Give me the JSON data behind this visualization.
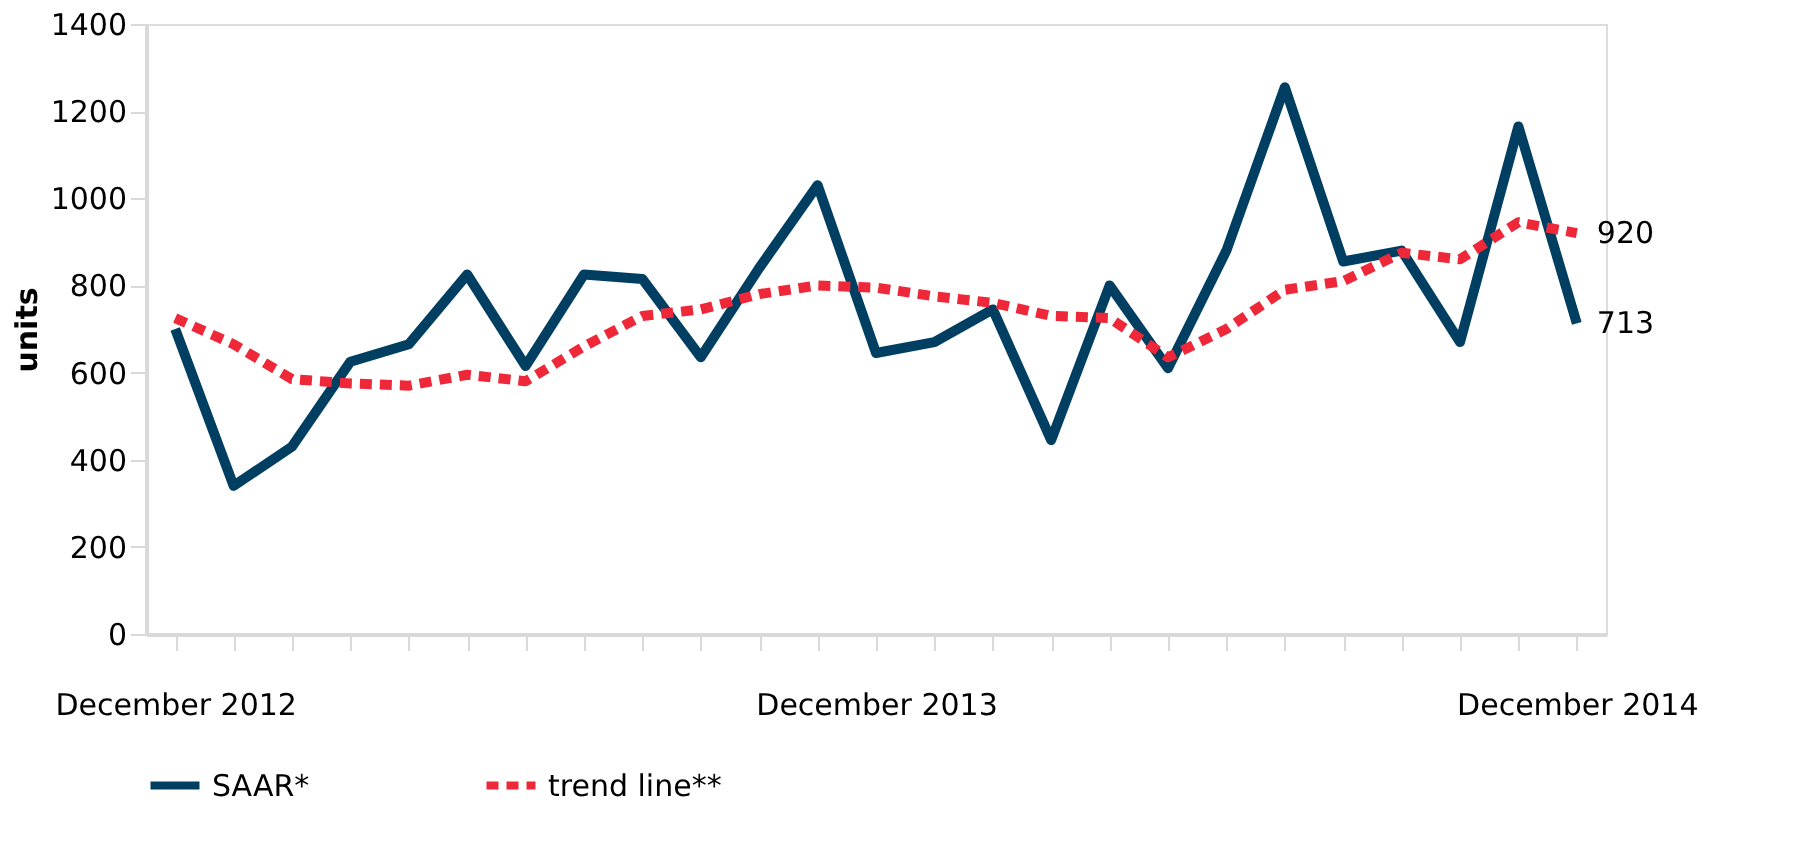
{
  "chart_data": {
    "type": "line",
    "ylabel": "units",
    "categories": [
      "December 2012",
      null,
      null,
      null,
      null,
      null,
      null,
      null,
      null,
      null,
      null,
      null,
      "December 2013",
      null,
      null,
      null,
      null,
      null,
      null,
      null,
      null,
      null,
      null,
      null,
      "December 2014"
    ],
    "series": [
      {
        "name": "SAAR*",
        "color": "#003f62",
        "line_style": "solid",
        "values": [
          700,
          340,
          430,
          625,
          665,
          825,
          615,
          825,
          815,
          635,
          840,
          1030,
          645,
          670,
          745,
          445,
          800,
          610,
          880,
          1255,
          855,
          880,
          670,
          1165,
          713
        ],
        "value_labels": [
          null,
          null,
          null,
          null,
          null,
          null,
          null,
          null,
          null,
          null,
          null,
          null,
          null,
          null,
          null,
          null,
          null,
          null,
          null,
          null,
          null,
          null,
          null,
          null,
          "713"
        ]
      },
      {
        "name": "trend line**",
        "color": "#ee2838",
        "line_style": "dashed",
        "values": [
          725,
          665,
          585,
          575,
          570,
          595,
          580,
          660,
          730,
          745,
          780,
          800,
          795,
          775,
          760,
          730,
          725,
          635,
          700,
          790,
          810,
          875,
          860,
          945,
          920
        ],
        "value_labels": [
          null,
          null,
          null,
          null,
          null,
          null,
          null,
          null,
          null,
          null,
          null,
          null,
          null,
          null,
          null,
          null,
          null,
          null,
          null,
          null,
          null,
          null,
          null,
          null,
          "920"
        ]
      }
    ],
    "ylim": [
      0,
      1400
    ],
    "yticks": [
      0,
      200,
      400,
      600,
      800,
      1000,
      1200,
      1400
    ],
    "grid": false,
    "legend": "bottom",
    "marker": "none"
  }
}
